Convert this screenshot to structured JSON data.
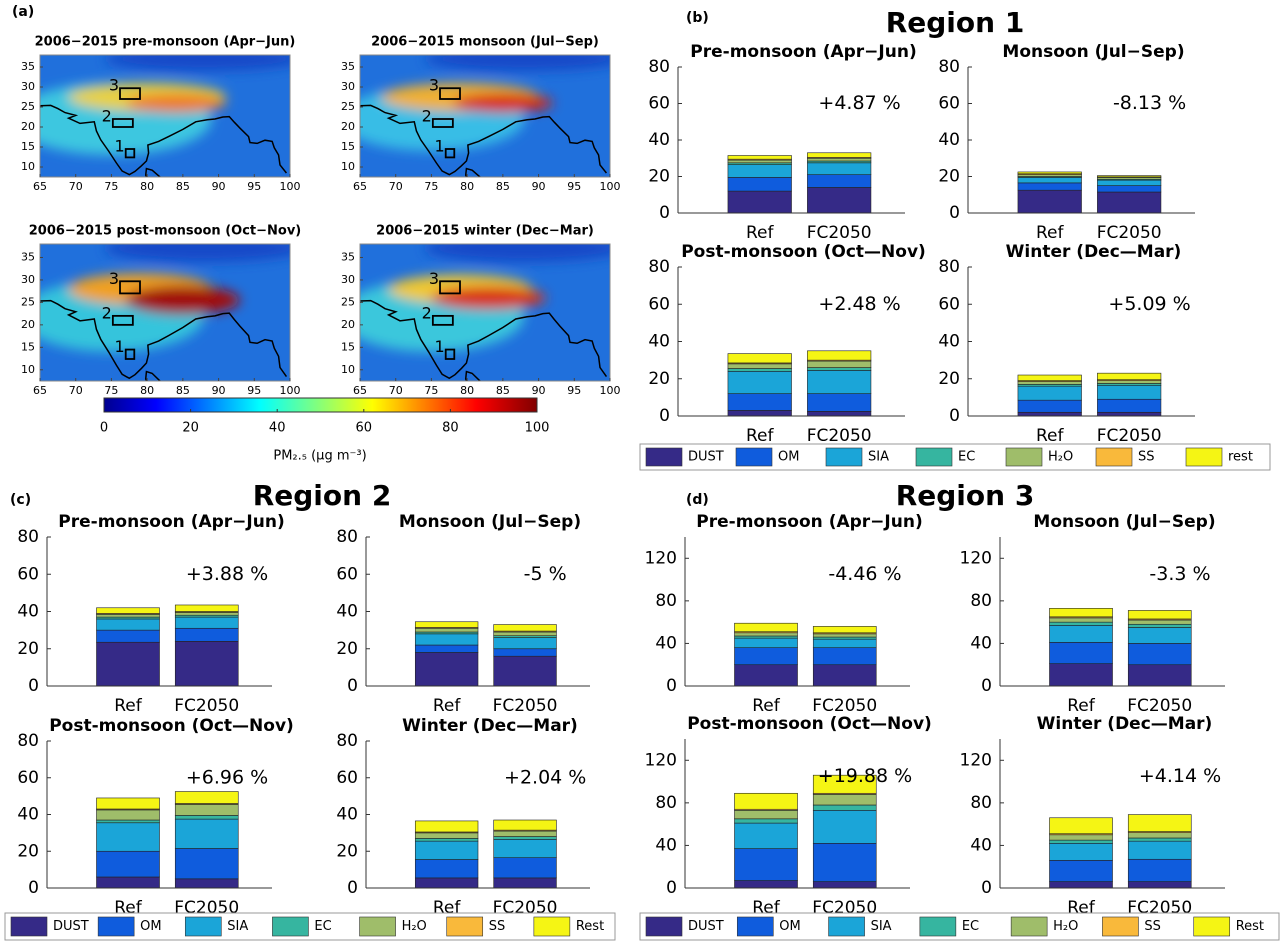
{
  "chart_data": [
    {
      "type": "map",
      "panel": "(a)",
      "maps": [
        {
          "title": "2006−2015  pre-monsoon (Apr−Jun)",
          "xlim": [
            65,
            100
          ],
          "ylim": [
            7.5,
            38
          ],
          "xticks": [
            65,
            70,
            75,
            80,
            85,
            90,
            95,
            100
          ],
          "yticks": [
            10,
            15,
            20,
            25,
            30,
            35
          ],
          "region_labels": [
            "1",
            "2",
            "3"
          ]
        },
        {
          "title": "2006−2015  monsoon (Jul−Sep)",
          "xlim": [
            65,
            100
          ],
          "ylim": [
            7.5,
            38
          ],
          "xticks": [
            65,
            70,
            75,
            80,
            85,
            90,
            95,
            100
          ],
          "yticks": [
            10,
            15,
            20,
            25,
            30,
            35
          ],
          "region_labels": [
            "1",
            "2",
            "3"
          ]
        },
        {
          "title": "2006−2015 post-monsoon (Oct−Nov)",
          "xlim": [
            65,
            100
          ],
          "ylim": [
            7.5,
            38
          ],
          "xticks": [
            65,
            70,
            75,
            80,
            85,
            90,
            95,
            100
          ],
          "yticks": [
            10,
            15,
            20,
            25,
            30,
            35
          ],
          "region_labels": [
            "1",
            "2",
            "3"
          ]
        },
        {
          "title": "2006−2015  winter (Dec−Mar)",
          "xlim": [
            65,
            100
          ],
          "ylim": [
            7.5,
            38
          ],
          "xticks": [
            65,
            70,
            75,
            80,
            85,
            90,
            95,
            100
          ],
          "yticks": [
            10,
            15,
            20,
            25,
            30,
            35
          ],
          "region_labels": [
            "1",
            "2",
            "3"
          ]
        }
      ],
      "colorbar": {
        "xlim": [
          0,
          100
        ],
        "xticks": [
          0,
          20,
          40,
          60,
          80,
          100
        ],
        "label": "PM₂.₅ (μg m⁻³)"
      }
    },
    {
      "type": "bar",
      "stacked": true,
      "panel": "(b)",
      "title": "Region 1",
      "series": [
        {
          "name": "DUST",
          "color": "#352a87"
        },
        {
          "name": "OM",
          "color": "#0f5cdd"
        },
        {
          "name": "SIA",
          "color": "#1ba5d8"
        },
        {
          "name": "EC",
          "color": "#36b5a0"
        },
        {
          "name": "H₂O",
          "color": "#9fbd6a"
        },
        {
          "name": "SS",
          "color": "#f9b93b"
        },
        {
          "name": "rest",
          "color": "#f5f514"
        }
      ],
      "subplots": [
        {
          "title": "Pre-monsoon (Apr−Jun)",
          "annotation": "+4.87  %",
          "ylim": [
            0,
            80
          ],
          "yticks": [
            0,
            20,
            40,
            60,
            80
          ],
          "categories": [
            "Ref",
            "FC2050"
          ],
          "series": [
            {
              "values": [
                12,
                14
              ]
            },
            {
              "values": [
                7.5,
                7
              ]
            },
            {
              "values": [
                7,
                6.5
              ]
            },
            {
              "values": [
                1,
                1
              ]
            },
            {
              "values": [
                1.5,
                1.5
              ]
            },
            {
              "values": [
                0.5,
                0.5
              ]
            },
            {
              "values": [
                2,
                2.5
              ]
            }
          ]
        },
        {
          "title": "Monsoon (Jul−Sep)",
          "annotation": "-8.13  %",
          "ylim": [
            0,
            80
          ],
          "yticks": [
            0,
            20,
            40,
            60,
            80
          ],
          "categories": [
            "Ref",
            "FC2050"
          ],
          "series": [
            {
              "values": [
                12.5,
                11.5
              ]
            },
            {
              "values": [
                4,
                3.5
              ]
            },
            {
              "values": [
                3,
                3
              ]
            },
            {
              "values": [
                0.5,
                0.5
              ]
            },
            {
              "values": [
                1,
                1
              ]
            },
            {
              "values": [
                0.5,
                0.3
              ]
            },
            {
              "values": [
                1,
                0.7
              ]
            }
          ]
        },
        {
          "title": "Post-monsoon (Oct—Nov)",
          "annotation": "+2.48  %",
          "ylim": [
            0,
            80
          ],
          "yticks": [
            0,
            20,
            40,
            60,
            80
          ],
          "categories": [
            "Ref",
            "FC2050"
          ],
          "series": [
            {
              "values": [
                3,
                2.5
              ]
            },
            {
              "values": [
                9,
                9.5
              ]
            },
            {
              "values": [
                12,
                12.5
              ]
            },
            {
              "values": [
                1.5,
                1.5
              ]
            },
            {
              "values": [
                2.5,
                3.5
              ]
            },
            {
              "values": [
                0.5,
                0.5
              ]
            },
            {
              "values": [
                5,
                5
              ]
            }
          ]
        },
        {
          "title": "Winter (Dec—Mar)",
          "annotation": "+5.09  %",
          "ylim": [
            0,
            80
          ],
          "yticks": [
            0,
            20,
            40,
            60,
            80
          ],
          "categories": [
            "Ref",
            "FC2050"
          ],
          "series": [
            {
              "values": [
                2,
                2
              ]
            },
            {
              "values": [
                6.5,
                7
              ]
            },
            {
              "values": [
                7.5,
                7.5
              ]
            },
            {
              "values": [
                1,
                1
              ]
            },
            {
              "values": [
                1.5,
                1.5
              ]
            },
            {
              "values": [
                0.5,
                0.5
              ]
            },
            {
              "values": [
                3,
                3.5
              ]
            }
          ]
        }
      ]
    },
    {
      "type": "bar",
      "stacked": true,
      "panel": "(c)",
      "title": "Region 2",
      "series": [
        {
          "name": "DUST",
          "color": "#352a87"
        },
        {
          "name": "OM",
          "color": "#0f5cdd"
        },
        {
          "name": "SIA",
          "color": "#1ba5d8"
        },
        {
          "name": "EC",
          "color": "#36b5a0"
        },
        {
          "name": "H₂O",
          "color": "#9fbd6a"
        },
        {
          "name": "SS",
          "color": "#f9b93b"
        },
        {
          "name": "Rest",
          "color": "#f5f514"
        }
      ],
      "subplots": [
        {
          "title": "Pre-monsoon (Apr−Jun)",
          "annotation": "+3.88  %",
          "ylim": [
            0,
            80
          ],
          "yticks": [
            0,
            20,
            40,
            60,
            80
          ],
          "categories": [
            "Ref",
            "FC2050"
          ],
          "series": [
            {
              "values": [
                23.5,
                24
              ]
            },
            {
              "values": [
                6.5,
                7
              ]
            },
            {
              "values": [
                6,
                6
              ]
            },
            {
              "values": [
                1,
                1
              ]
            },
            {
              "values": [
                1.5,
                1.5
              ]
            },
            {
              "values": [
                0.5,
                0.5
              ]
            },
            {
              "values": [
                3,
                3.5
              ]
            }
          ]
        },
        {
          "title": "Monsoon (Jul−Sep)",
          "annotation": "-5  %",
          "ylim": [
            0,
            80
          ],
          "yticks": [
            0,
            20,
            40,
            60,
            80
          ],
          "categories": [
            "Ref",
            "FC2050"
          ],
          "series": [
            {
              "values": [
                18,
                16
              ]
            },
            {
              "values": [
                4,
                4
              ]
            },
            {
              "values": [
                6,
                6
              ]
            },
            {
              "values": [
                1,
                1
              ]
            },
            {
              "values": [
                2,
                2
              ]
            },
            {
              "values": [
                0.5,
                0.5
              ]
            },
            {
              "values": [
                3,
                3.5
              ]
            }
          ]
        },
        {
          "title": "Post-monsoon (Oct—Nov)",
          "annotation": "+6.96  %",
          "ylim": [
            0,
            80
          ],
          "yticks": [
            0,
            20,
            40,
            60,
            80
          ],
          "categories": [
            "Ref",
            "FC2050"
          ],
          "series": [
            {
              "values": [
                6,
                5
              ]
            },
            {
              "values": [
                14,
                16.5
              ]
            },
            {
              "values": [
                15.5,
                16
              ]
            },
            {
              "values": [
                1.5,
                2
              ]
            },
            {
              "values": [
                5.5,
                6
              ]
            },
            {
              "values": [
                0.5,
                0.5
              ]
            },
            {
              "values": [
                6,
                6.5
              ]
            }
          ]
        },
        {
          "title": "Winter (Dec—Mar)",
          "annotation": "+2.04  %",
          "ylim": [
            0,
            80
          ],
          "yticks": [
            0,
            20,
            40,
            60,
            80
          ],
          "categories": [
            "Ref",
            "FC2050"
          ],
          "series": [
            {
              "values": [
                5.5,
                5.5
              ]
            },
            {
              "values": [
                10,
                11
              ]
            },
            {
              "values": [
                10,
                10
              ]
            },
            {
              "values": [
                1.5,
                1.5
              ]
            },
            {
              "values": [
                3,
                3
              ]
            },
            {
              "values": [
                0.5,
                0.5
              ]
            },
            {
              "values": [
                6,
                5.5
              ]
            }
          ]
        }
      ]
    },
    {
      "type": "bar",
      "stacked": true,
      "panel": "(d)",
      "title": "Region 3",
      "series": [
        {
          "name": "DUST",
          "color": "#352a87"
        },
        {
          "name": "OM",
          "color": "#0f5cdd"
        },
        {
          "name": "SIA",
          "color": "#1ba5d8"
        },
        {
          "name": "EC",
          "color": "#36b5a0"
        },
        {
          "name": "H₂O",
          "color": "#9fbd6a"
        },
        {
          "name": "SS",
          "color": "#f9b93b"
        },
        {
          "name": "Rest",
          "color": "#f5f514"
        }
      ],
      "subplots": [
        {
          "title": "Pre-monsoon (Apr−Jun)",
          "annotation": "-4.46  %",
          "ylim": [
            0,
            140
          ],
          "yticks": [
            0,
            40,
            80,
            120
          ],
          "categories": [
            "Ref",
            "FC2050"
          ],
          "series": [
            {
              "values": [
                20,
                20
              ]
            },
            {
              "values": [
                16,
                16
              ]
            },
            {
              "values": [
                9,
                8
              ]
            },
            {
              "values": [
                2,
                2
              ]
            },
            {
              "values": [
                3,
                3
              ]
            },
            {
              "values": [
                1,
                1
              ]
            },
            {
              "values": [
                8,
                6
              ]
            }
          ]
        },
        {
          "title": "Monsoon (Jul−Sep)",
          "annotation": "-3.3  %",
          "ylim": [
            0,
            140
          ],
          "yticks": [
            0,
            40,
            80,
            120
          ],
          "categories": [
            "Ref",
            "FC2050"
          ],
          "series": [
            {
              "values": [
                21,
                20
              ]
            },
            {
              "values": [
                20,
                20
              ]
            },
            {
              "values": [
                16,
                15
              ]
            },
            {
              "values": [
                3,
                3
              ]
            },
            {
              "values": [
                4,
                4
              ]
            },
            {
              "values": [
                1,
                1
              ]
            },
            {
              "values": [
                8,
                8
              ]
            }
          ]
        },
        {
          "title": "Post-monsoon (Oct—Nov)",
          "annotation": "+19.88  %",
          "ylim": [
            0,
            140
          ],
          "yticks": [
            0,
            40,
            80,
            120
          ],
          "categories": [
            "Ref",
            "FC2050"
          ],
          "series": [
            {
              "values": [
                7,
                6
              ]
            },
            {
              "values": [
                30,
                36
              ]
            },
            {
              "values": [
                24,
                31
              ]
            },
            {
              "values": [
                4,
                5
              ]
            },
            {
              "values": [
                8,
                10
              ]
            },
            {
              "values": [
                1,
                1
              ]
            },
            {
              "values": [
                15,
                17
              ]
            }
          ]
        },
        {
          "title": "Winter (Dec—Mar)",
          "annotation": "+4.14  %",
          "ylim": [
            0,
            140
          ],
          "yticks": [
            0,
            40,
            80,
            120
          ],
          "categories": [
            "Ref",
            "FC2050"
          ],
          "series": [
            {
              "values": [
                6,
                6
              ]
            },
            {
              "values": [
                20,
                21
              ]
            },
            {
              "values": [
                16,
                17
              ]
            },
            {
              "values": [
                3,
                3
              ]
            },
            {
              "values": [
                5,
                5
              ]
            },
            {
              "values": [
                1,
                1
              ]
            },
            {
              "values": [
                15,
                16
              ]
            }
          ]
        }
      ]
    }
  ]
}
